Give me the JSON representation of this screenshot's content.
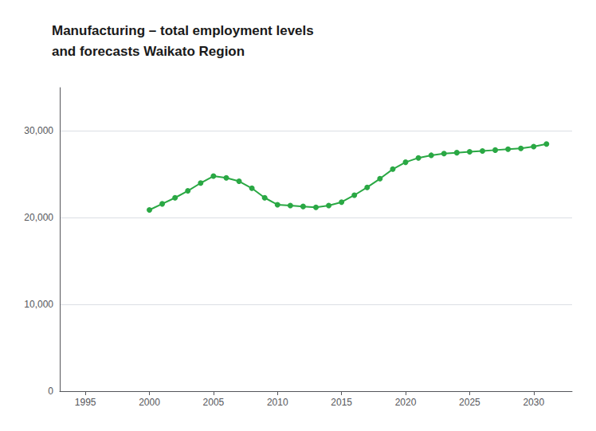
{
  "chart_data": {
    "type": "line",
    "title": "Manufacturing – total employment levels\nand forecasts Waikato Region",
    "x": [
      2000,
      2001,
      2002,
      2003,
      2004,
      2005,
      2006,
      2007,
      2008,
      2009,
      2010,
      2011,
      2012,
      2013,
      2014,
      2015,
      2016,
      2017,
      2018,
      2019,
      2020,
      2021,
      2022,
      2023,
      2024,
      2025,
      2026,
      2027,
      2028,
      2029,
      2030,
      2031
    ],
    "values": [
      20900,
      21600,
      22300,
      23100,
      24000,
      24800,
      24600,
      24200,
      23400,
      22300,
      21500,
      21400,
      21300,
      21200,
      21400,
      21800,
      22600,
      23500,
      24500,
      25600,
      26400,
      26900,
      27200,
      27400,
      27500,
      27600,
      27700,
      27800,
      27900,
      28000,
      28200,
      28500
    ],
    "color": "#2aa844",
    "marker": "circle",
    "xlim": [
      1993,
      2033
    ],
    "xticks": [
      1995,
      2000,
      2005,
      2010,
      2015,
      2020,
      2025,
      2030
    ],
    "ylim": [
      0,
      35000
    ],
    "yticks": [
      0,
      {
        "value": 10000,
        "label": "10,000"
      },
      {
        "value": 20000,
        "label": "20,000"
      },
      {
        "value": 30000,
        "label": "30,000"
      }
    ],
    "grid": true
  }
}
